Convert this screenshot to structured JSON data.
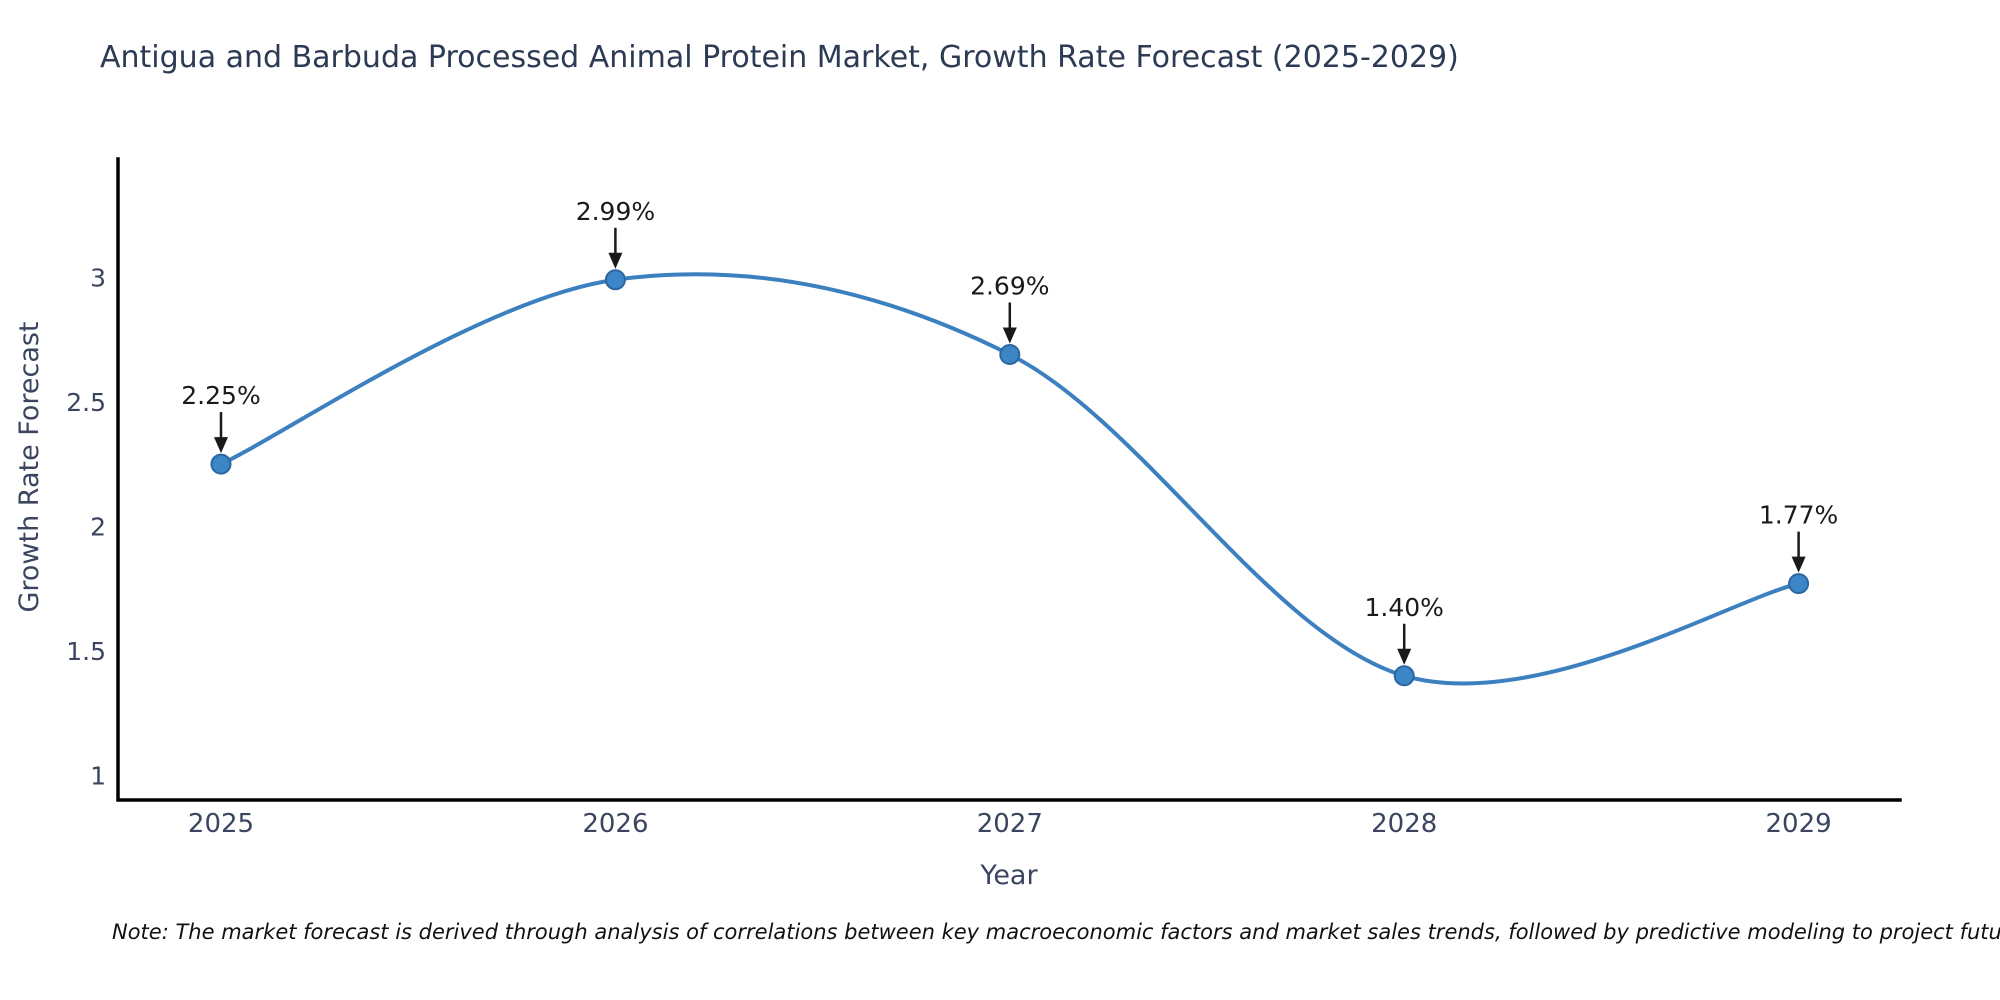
{
  "page": {
    "title": "Antigua and Barbuda Processed Animal Protein Market, Growth Rate Forecast (2025-2029)",
    "note": "Note: The market forecast is derived through analysis of correlations between key macroeconomic factors and market sales trends, followed by predictive modeling to project future sales"
  },
  "chart_data": {
    "type": "line",
    "title": "Antigua and Barbuda Processed Animal Protein Market, Growth Rate Forecast (2025-2029)",
    "xlabel": "Year",
    "ylabel": "Growth Rate Forecast",
    "x": [
      2025,
      2026,
      2027,
      2028,
      2029
    ],
    "y": [
      2.25,
      2.99,
      2.69,
      1.4,
      1.77
    ],
    "point_labels": [
      "2.25%",
      "2.99%",
      "2.69%",
      "1.40%",
      "1.77%"
    ],
    "xtick_labels": [
      "2025",
      "2026",
      "2027",
      "2028",
      "2029"
    ],
    "yticks": [
      1,
      1.5,
      2,
      2.5,
      3
    ],
    "ytick_labels": [
      "1",
      "1.5",
      "2",
      "2.5",
      "3"
    ],
    "ylim": [
      0.9,
      3.47
    ],
    "grid": false,
    "legend": "none",
    "line_shape": "spline",
    "colors": {
      "line": "#3d80c0",
      "marker_fill": "#3c85c6",
      "marker_edge": "#2a669f",
      "axis": "#000000",
      "title": "#2c3a54",
      "tick": "#3b4560",
      "annotation": "#1a1a1a"
    }
  }
}
